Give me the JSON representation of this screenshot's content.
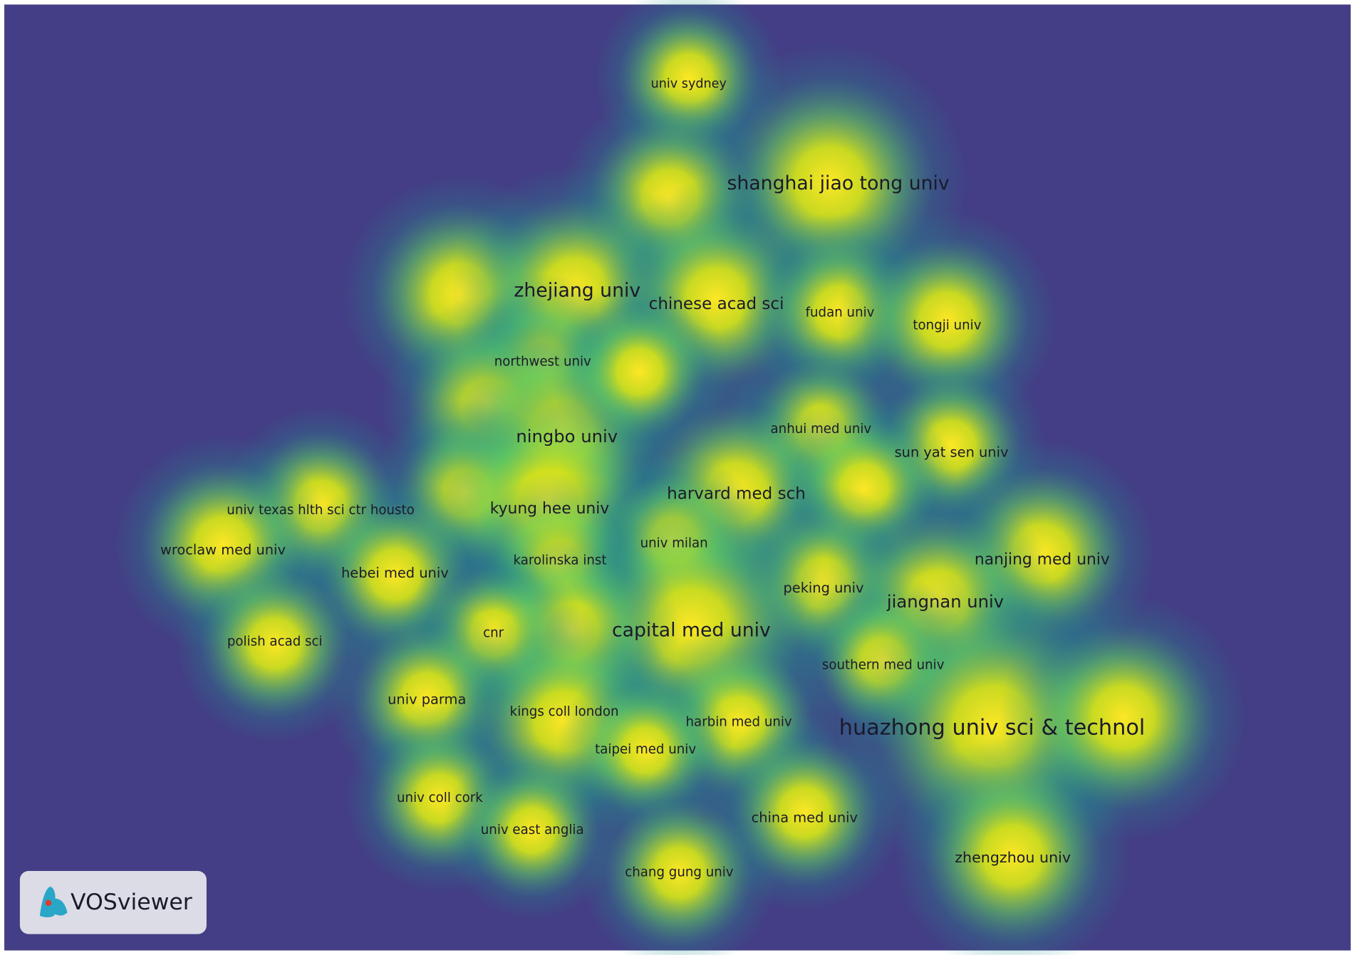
{
  "map": {
    "labels": [
      "univ sydney",
      "shanghai jiao tong univ",
      "zhejiang univ",
      "chinese acad sci",
      "fudan univ",
      "tongji univ",
      "northwest univ",
      "ningbo univ",
      "anhui med univ",
      "sun yat sen univ",
      "harvard med sch",
      "kyung hee univ",
      "univ texas hlth sci ctr housto",
      "wroclaw med univ",
      "univ milan",
      "karolinska inst",
      "hebei med univ",
      "nanjing med univ",
      "peking univ",
      "jiangnan univ",
      "capital med univ",
      "cnr",
      "polish acad sci",
      "southern med univ",
      "univ parma",
      "kings coll london",
      "harbin med univ",
      "huazhong univ sci & technol",
      "taipei med univ",
      "univ coll cork",
      "univ east anglia",
      "china med univ",
      "zhengzhou univ",
      "chang gung univ"
    ]
  },
  "logo": {
    "text": "VOSviewer"
  }
}
